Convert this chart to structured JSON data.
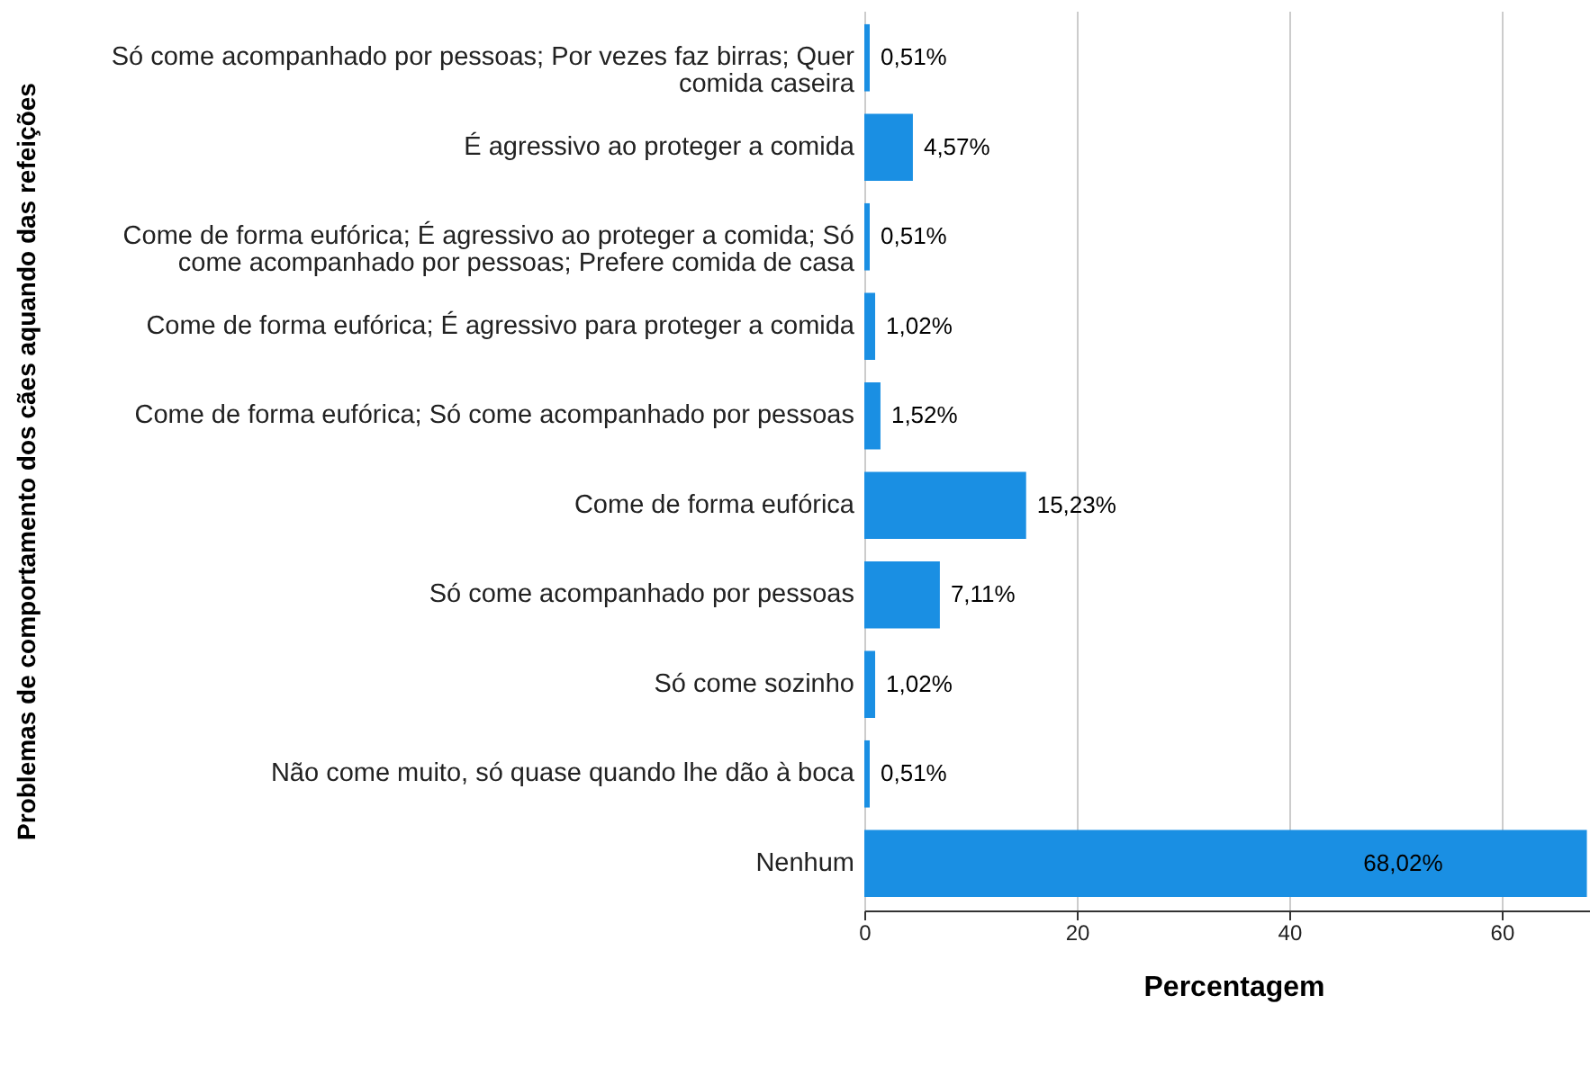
{
  "chart_data": {
    "type": "bar",
    "orientation": "horizontal",
    "xlabel": "Percentagem",
    "ylabel": "Problemas de comportamento dos cães aquando das refeições",
    "categories": [
      "Só come acompanhado por pessoas; Por vezes faz birras; Quer comida caseira",
      "É agressivo ao proteger a comida",
      "Come de forma eufórica; É agressivo ao proteger a comida; Só come acompanhado por pessoas; Prefere comida de casa",
      "Come de forma eufórica; É agressivo para proteger a comida",
      "Come de forma eufórica; Só come acompanhado por pessoas",
      "Come de forma eufórica",
      "Só come acompanhado por pessoas",
      "Só come sozinho",
      "Não come muito, só quase quando lhe dão à boca",
      "Nenhum"
    ],
    "values": [
      0.51,
      4.57,
      0.51,
      1.02,
      1.52,
      15.23,
      7.11,
      1.02,
      0.51,
      68.02
    ],
    "value_labels": [
      "0,51%",
      "4,57%",
      "0,51%",
      "1,02%",
      "1,52%",
      "15,23%",
      "7,11%",
      "1,02%",
      "0,51%",
      "68,02%"
    ],
    "color": "#1a8fe3",
    "xlim": [
      0,
      69.5
    ],
    "xticks": [
      0,
      20,
      40,
      60
    ],
    "grid": "x"
  }
}
